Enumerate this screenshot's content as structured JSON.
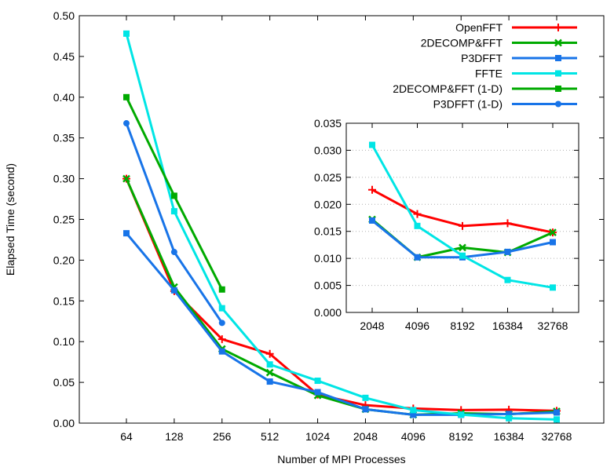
{
  "chart_data": [
    {
      "type": "line",
      "xlabel": "Number of MPI Processes",
      "ylabel": "Elapsed Time (second)",
      "categories": [
        "64",
        "128",
        "256",
        "512",
        "1024",
        "2048",
        "4096",
        "8192",
        "16384",
        "32768"
      ],
      "ylim": [
        0,
        0.5
      ],
      "yticks": [
        "0.00",
        "0.05",
        "0.10",
        "0.15",
        "0.20",
        "0.25",
        "0.30",
        "0.35",
        "0.40",
        "0.45",
        "0.50"
      ],
      "legend_position": "top-right",
      "grid": false,
      "series": [
        {
          "name": "OpenFFT",
          "color": "#ff0000",
          "marker": "plus",
          "values": [
            0.3,
            0.162,
            0.103,
            0.085,
            0.035,
            0.022,
            0.018,
            0.016,
            0.0165,
            0.015
          ]
        },
        {
          "name": "2DECOMP&FFT",
          "color": "#00aa00",
          "marker": "cross",
          "values": [
            0.3,
            0.167,
            0.091,
            0.062,
            0.034,
            0.017,
            0.0102,
            0.012,
            0.011,
            0.0145
          ]
        },
        {
          "name": "P3DFFT",
          "color": "#1874e8",
          "marker": "square",
          "values": [
            0.233,
            0.163,
            0.088,
            0.051,
            0.038,
            0.017,
            0.0102,
            0.0102,
            0.0112,
            0.013
          ]
        },
        {
          "name": "FFTE",
          "color": "#00e5e5",
          "marker": "square",
          "values": [
            0.478,
            0.26,
            0.141,
            0.072,
            0.052,
            0.031,
            0.016,
            0.0105,
            0.006,
            0.0045
          ]
        },
        {
          "name": "2DECOMP&FFT (1-D)",
          "color": "#00aa00",
          "marker": "square",
          "values": [
            0.4,
            0.279,
            0.164,
            null,
            null,
            null,
            null,
            null,
            null,
            null
          ]
        },
        {
          "name": "P3DFFT      (1-D)",
          "color": "#1874e8",
          "marker": "circle",
          "values": [
            0.368,
            0.21,
            0.123,
            null,
            null,
            null,
            null,
            null,
            null,
            null
          ]
        }
      ]
    },
    {
      "type": "line",
      "categories": [
        "2048",
        "4096",
        "8192",
        "16384",
        "32768"
      ],
      "ylim": [
        0,
        0.035
      ],
      "yticks": [
        "0.000",
        "0.005",
        "0.010",
        "0.015",
        "0.020",
        "0.025",
        "0.030",
        "0.035"
      ],
      "grid": true,
      "series": [
        {
          "name": "OpenFFT",
          "color": "#ff0000",
          "marker": "plus",
          "values": [
            0.0227,
            0.0182,
            0.016,
            0.0165,
            0.0148
          ]
        },
        {
          "name": "2DECOMP&FFT",
          "color": "#00aa00",
          "marker": "cross",
          "values": [
            0.0172,
            0.0102,
            0.012,
            0.0111,
            0.0148
          ]
        },
        {
          "name": "P3DFFT",
          "color": "#1874e8",
          "marker": "square",
          "values": [
            0.017,
            0.0102,
            0.0102,
            0.0112,
            0.013
          ]
        },
        {
          "name": "FFTE",
          "color": "#00e5e5",
          "marker": "square",
          "values": [
            0.031,
            0.016,
            0.0105,
            0.006,
            0.0046
          ]
        }
      ]
    }
  ]
}
